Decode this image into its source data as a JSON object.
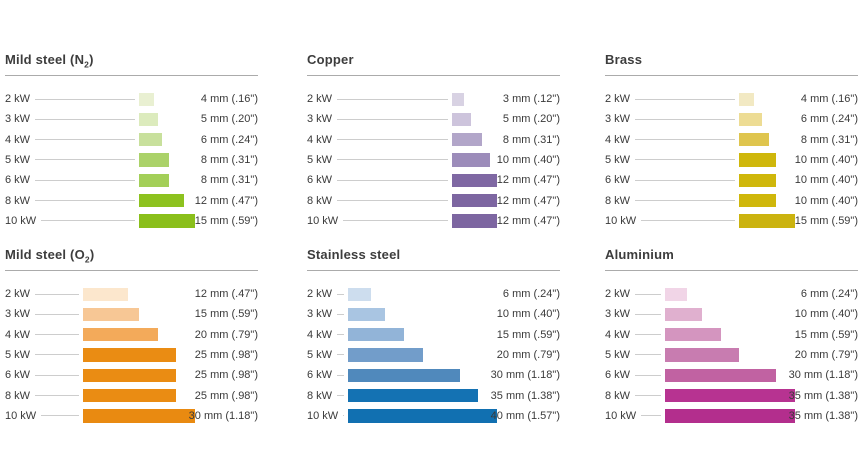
{
  "page": {
    "background": "#ffffff",
    "description": "Laser cutting thickness by laser power for six materials"
  },
  "style": {
    "divider_color": "#ababab",
    "leader_line_color": "#cdcdcd",
    "title_color": "#3d3d3d",
    "label_color": "#3a3a3a"
  },
  "chart_data": [
    {
      "type": "bar",
      "orientation": "horizontal",
      "title": "Mild steel (N₂)",
      "title_parts": [
        "Mild steel (N",
        "2",
        ")"
      ],
      "unit": "mm",
      "grid": false,
      "legend": "none",
      "categories": [
        "2 kW",
        "3 kW",
        "4 kW",
        "5 kW",
        "6 kW",
        "8 kW",
        "10 kW"
      ],
      "values_mm": [
        4,
        5,
        6,
        8,
        8,
        12,
        15
      ],
      "value_labels": [
        "4 mm (.16\")",
        "5 mm (.20\")",
        "6 mm (.24\")",
        "8 mm (.31\")",
        "8 mm (.31\")",
        "12 mm (.47\")",
        "15 mm (.59\")"
      ],
      "bar_colors": [
        "#e9f0d2",
        "#dcebbd",
        "#c8e09c",
        "#abd269",
        "#a3cf58",
        "#8dc21f",
        "#8abf1b"
      ]
    },
    {
      "type": "bar",
      "orientation": "horizontal",
      "title": "Copper",
      "title_parts": [
        "Copper",
        "",
        ""
      ],
      "unit": "mm",
      "grid": false,
      "legend": "none",
      "categories": [
        "2 kW",
        "3 kW",
        "4 kW",
        "5 kW",
        "6 kW",
        "8 kW",
        "10 kW"
      ],
      "values_mm": [
        3,
        5,
        8,
        10,
        12,
        12,
        12
      ],
      "value_labels": [
        "3 mm (.12\")",
        "5 mm (.20\")",
        "8 mm (.31\")",
        "10 mm (.40\")",
        "12 mm (.47\")",
        "12 mm (.47\")",
        "12 mm (.47\")"
      ],
      "bar_colors": [
        "#d8d2e3",
        "#cdc4dc",
        "#b2a6c9",
        "#9c8cba",
        "#7f68a3",
        "#7d66a1",
        "#7d66a1"
      ]
    },
    {
      "type": "bar",
      "orientation": "horizontal",
      "title": "Brass",
      "title_parts": [
        "Brass",
        "",
        ""
      ],
      "unit": "mm",
      "grid": false,
      "legend": "none",
      "categories": [
        "2 kW",
        "3 kW",
        "4 kW",
        "5 kW",
        "6 kW",
        "8 kW",
        "10 kW"
      ],
      "values_mm": [
        4,
        6,
        8,
        10,
        10,
        10,
        15
      ],
      "value_labels": [
        "4 mm (.16\")",
        "6 mm (.24\")",
        "8 mm (.31\")",
        "10 mm (.40\")",
        "10 mm (.40\")",
        "10 mm (.40\")",
        "15 mm (.59\")"
      ],
      "bar_colors": [
        "#f2e9c3",
        "#eddc94",
        "#dfc54e",
        "#cfb70b",
        "#cfb70b",
        "#cfb70b",
        "#cbb30f"
      ]
    },
    {
      "type": "bar",
      "orientation": "horizontal",
      "title": "Mild steel (O₂)",
      "title_parts": [
        "Mild steel (O",
        "2",
        ")"
      ],
      "unit": "mm",
      "grid": false,
      "legend": "none",
      "categories": [
        "2 kW",
        "3 kW",
        "4 kW",
        "5 kW",
        "6 kW",
        "8 kW",
        "10 kW"
      ],
      "values_mm": [
        12,
        15,
        20,
        25,
        25,
        25,
        30
      ],
      "value_labels": [
        "12 mm (.47\")",
        "15 mm (.59\")",
        "20 mm (.79\")",
        "25 mm (.98\")",
        "25 mm (.98\")",
        "25 mm (.98\")",
        "30 mm (1.18\")"
      ],
      "bar_colors": [
        "#fce7cd",
        "#f7c795",
        "#f3aa5a",
        "#ea8c13",
        "#ea8c13",
        "#ea8c13",
        "#e98a11"
      ]
    },
    {
      "type": "bar",
      "orientation": "horizontal",
      "title": "Stainless steel",
      "title_parts": [
        "Stainless steel",
        "",
        ""
      ],
      "unit": "mm",
      "grid": false,
      "legend": "none",
      "categories": [
        "2 kW",
        "3 kW",
        "4 kW",
        "5 kW",
        "6 kW",
        "8 kW",
        "10 kW"
      ],
      "values_mm": [
        6,
        10,
        15,
        20,
        30,
        35,
        40
      ],
      "value_labels": [
        "6 mm (.24\")",
        "10 mm (.40\")",
        "15 mm (.59\")",
        "20 mm (.79\")",
        "30 mm (1.18\")",
        "35 mm (1.38\")",
        "40 mm (1.57\")"
      ],
      "bar_colors": [
        "#cdddee",
        "#a9c5e2",
        "#92b4d8",
        "#729dca",
        "#5089bc",
        "#1472b3",
        "#1170b1"
      ]
    },
    {
      "type": "bar",
      "orientation": "horizontal",
      "title": "Aluminium",
      "title_parts": [
        "Aluminium",
        "",
        ""
      ],
      "unit": "mm",
      "grid": false,
      "legend": "none",
      "categories": [
        "2 kW",
        "3 kW",
        "4 kW",
        "5 kW",
        "6 kW",
        "8 kW",
        "10 kW"
      ],
      "values_mm": [
        6,
        10,
        15,
        20,
        30,
        35,
        35
      ],
      "value_labels": [
        "6 mm (.24\")",
        "10 mm (.40\")",
        "15 mm (.59\")",
        "20 mm (.79\")",
        "30 mm (1.18\")",
        "35 mm (1.38\")",
        "35 mm (1.38\")"
      ],
      "bar_colors": [
        "#f1d5e7",
        "#e0b0cf",
        "#d495bf",
        "#c87cb0",
        "#c162a2",
        "#b73391",
        "#b32e8d"
      ]
    }
  ]
}
